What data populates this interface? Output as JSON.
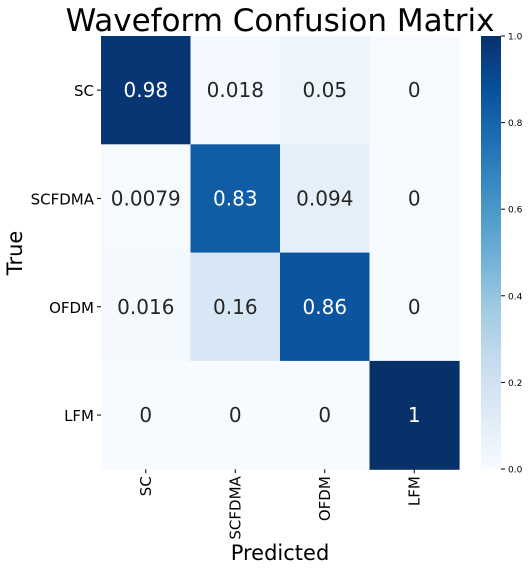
{
  "chart_data": {
    "type": "heatmap",
    "title": "Waveform Confusion Matrix",
    "xlabel": "Predicted",
    "ylabel": "True",
    "x_categories": [
      "SC",
      "SCFDMA",
      "OFDM",
      "LFM"
    ],
    "y_categories": [
      "SC",
      "SCFDMA",
      "OFDM",
      "LFM"
    ],
    "values": [
      [
        0.98,
        0.018,
        0.05,
        0
      ],
      [
        0.0079,
        0.83,
        0.094,
        0
      ],
      [
        0.016,
        0.16,
        0.86,
        0
      ],
      [
        0,
        0,
        0,
        1
      ]
    ],
    "cell_labels": [
      [
        "0.98",
        "0.018",
        "0.05",
        "0"
      ],
      [
        "0.0079",
        "0.83",
        "0.094",
        "0"
      ],
      [
        "0.016",
        "0.16",
        "0.86",
        "0"
      ],
      [
        "0",
        "0",
        "0",
        "1"
      ]
    ],
    "colorbar": {
      "min": 0,
      "max": 1,
      "ticks": [
        "0.0",
        "0.2",
        "0.4",
        "0.6",
        "0.8",
        "1.0"
      ]
    },
    "colormap": "Blues",
    "colors": {
      "low": "#f7fbff",
      "high": "#08306b",
      "annotation_dark": "#262626",
      "annotation_light": "#ffffff"
    },
    "grid": false
  }
}
